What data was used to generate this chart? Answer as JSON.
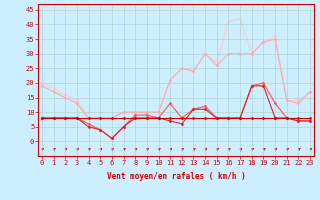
{
  "x": [
    0,
    1,
    2,
    3,
    4,
    5,
    6,
    7,
    8,
    9,
    10,
    11,
    12,
    13,
    14,
    15,
    16,
    17,
    18,
    19,
    20,
    21,
    22,
    23
  ],
  "series": [
    {
      "y": [
        8,
        8,
        8,
        8,
        8,
        8,
        8,
        8,
        8,
        8,
        8,
        8,
        8,
        8,
        8,
        8,
        8,
        8,
        8,
        8,
        8,
        8,
        8,
        8
      ],
      "color": "#cc0000",
      "linewidth": 0.8,
      "marker": "D",
      "markersize": 1.5,
      "zorder": 5
    },
    {
      "y": [
        8,
        8,
        8,
        8,
        5,
        4,
        1,
        5,
        8,
        8,
        8,
        7,
        6,
        11,
        11,
        8,
        8,
        8,
        19,
        19,
        8,
        8,
        7,
        7
      ],
      "color": "#dd2222",
      "linewidth": 0.8,
      "marker": "D",
      "markersize": 1.5,
      "zorder": 4
    },
    {
      "y": [
        8,
        8,
        8,
        8,
        6,
        4,
        1,
        5,
        9,
        9,
        8,
        13,
        8,
        11,
        12,
        8,
        8,
        8,
        19,
        20,
        13,
        8,
        7,
        7
      ],
      "color": "#ff5555",
      "linewidth": 0.8,
      "marker": "D",
      "markersize": 1.5,
      "zorder": 3
    },
    {
      "y": [
        19,
        17,
        15,
        13,
        8,
        8,
        8,
        10,
        10,
        10,
        10,
        21,
        25,
        24,
        30,
        26,
        30,
        30,
        30,
        34,
        35,
        14,
        13,
        17
      ],
      "color": "#ffaaaa",
      "linewidth": 0.8,
      "marker": "D",
      "markersize": 1.5,
      "zorder": 2
    },
    {
      "y": [
        20,
        18,
        16,
        14,
        8,
        8,
        8,
        10,
        10,
        10,
        10,
        21,
        25,
        24,
        30,
        27,
        41,
        42,
        30,
        34,
        36,
        14,
        14,
        17
      ],
      "color": "#ffcccc",
      "linewidth": 0.8,
      "marker": "D",
      "markersize": 1.5,
      "zorder": 1
    }
  ],
  "xlabel": "Vent moyen/en rafales ( km/h )",
  "xlabel_color": "#cc0000",
  "xlabel_fontsize": 5.5,
  "xtick_labels": [
    "0",
    "1",
    "2",
    "3",
    "4",
    "5",
    "6",
    "7",
    "8",
    "9",
    "10",
    "11",
    "12",
    "13",
    "14",
    "15",
    "16",
    "17",
    "18",
    "19",
    "20",
    "21",
    "22",
    "23"
  ],
  "ytick_values": [
    0,
    5,
    10,
    15,
    20,
    25,
    30,
    35,
    40,
    45
  ],
  "ylim": [
    -5,
    47
  ],
  "xlim": [
    -0.3,
    23.3
  ],
  "background_color": "#cceeff",
  "grid_color": "#aacccc",
  "tick_color": "#cc0000",
  "tick_fontsize": 5.0,
  "arrow_color": "#cc0000",
  "spine_color": "#cc0000"
}
